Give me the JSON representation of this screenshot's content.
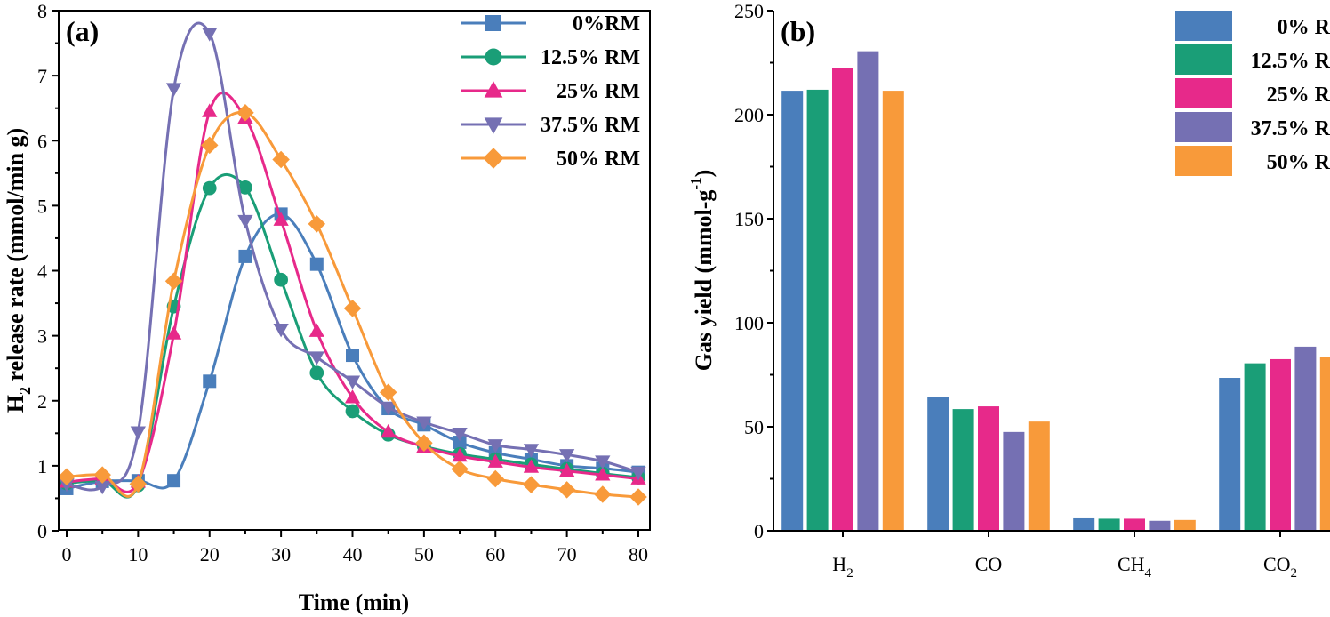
{
  "chart_data": [
    {
      "type": "line",
      "panel_label": "(a)",
      "xlabel": "Time (min)",
      "ylabel_main": "H",
      "ylabel_sub": "2",
      "ylabel_rest": " release rate (mmol/min g)",
      "xlim": [
        0,
        80
      ],
      "ylim": [
        0,
        8
      ],
      "xticks": [
        "0",
        "10",
        "20",
        "30",
        "40",
        "50",
        "60",
        "70",
        "80"
      ],
      "yticks": [
        "0",
        "1",
        "2",
        "3",
        "4",
        "5",
        "6",
        "7",
        "8"
      ],
      "x": [
        0,
        5,
        10,
        15,
        20,
        25,
        30,
        35,
        40,
        45,
        50,
        55,
        60,
        65,
        70,
        75,
        80
      ],
      "series": [
        {
          "name": "0%RM",
          "color": "#4A7EBB",
          "marker": "square",
          "values": [
            0.65,
            0.76,
            0.77,
            0.77,
            2.3,
            4.22,
            4.87,
            4.1,
            2.7,
            1.88,
            1.63,
            1.36,
            1.2,
            1.1,
            1.0,
            0.96,
            0.9
          ]
        },
        {
          "name": "12.5% RM",
          "color": "#1A9E77",
          "marker": "circle",
          "values": [
            0.73,
            0.77,
            0.7,
            3.45,
            5.27,
            5.28,
            3.86,
            2.43,
            1.84,
            1.48,
            1.3,
            1.18,
            1.1,
            1.02,
            0.95,
            0.88,
            0.82
          ]
        },
        {
          "name": "25% RM",
          "color": "#E7298A",
          "marker": "triangle-up",
          "values": [
            0.75,
            0.8,
            0.75,
            3.03,
            6.45,
            6.35,
            4.78,
            3.07,
            2.05,
            1.52,
            1.29,
            1.15,
            1.06,
            0.98,
            0.92,
            0.86,
            0.8
          ]
        },
        {
          "name": "37.5% RM",
          "color": "#7570B3",
          "marker": "triangle-down",
          "values": [
            0.72,
            0.68,
            1.52,
            6.8,
            7.65,
            4.77,
            3.1,
            2.67,
            2.3,
            1.9,
            1.67,
            1.5,
            1.32,
            1.25,
            1.17,
            1.07,
            0.9
          ]
        },
        {
          "name": "50% RM",
          "color": "#F89A3A",
          "marker": "diamond",
          "values": [
            0.83,
            0.86,
            0.72,
            3.84,
            5.93,
            6.43,
            5.71,
            4.72,
            3.42,
            2.13,
            1.35,
            0.95,
            0.8,
            0.71,
            0.63,
            0.56,
            0.52
          ]
        }
      ]
    },
    {
      "type": "bar",
      "panel_label": "(b)",
      "ylabel_main": "Gas yield (mmol-g",
      "ylabel_sup": "-1",
      "ylabel_rest": ")",
      "ylim": [
        0,
        250
      ],
      "yticks": [
        "0",
        "50",
        "100",
        "150",
        "200",
        "250"
      ],
      "categories": [
        {
          "main": "H",
          "sub": "2"
        },
        {
          "main": "CO",
          "sub": ""
        },
        {
          "main": "CH",
          "sub": "4"
        },
        {
          "main": "CO",
          "sub": "2"
        }
      ],
      "series": [
        {
          "name": "0% R",
          "color": "#4A7EBB",
          "values": [
            211.5,
            64.5,
            6.0,
            73.5
          ]
        },
        {
          "name": "12.5% R",
          "color": "#1A9E77",
          "values": [
            212.0,
            58.5,
            5.8,
            80.5
          ]
        },
        {
          "name": "25% R",
          "color": "#E7298A",
          "values": [
            222.5,
            59.8,
            5.8,
            82.5
          ]
        },
        {
          "name": "37.5% R",
          "color": "#7570B3",
          "values": [
            230.5,
            47.5,
            4.8,
            88.5
          ]
        },
        {
          "name": "50% R",
          "color": "#F89A3A",
          "values": [
            211.5,
            52.5,
            5.2,
            83.5
          ]
        }
      ]
    }
  ]
}
